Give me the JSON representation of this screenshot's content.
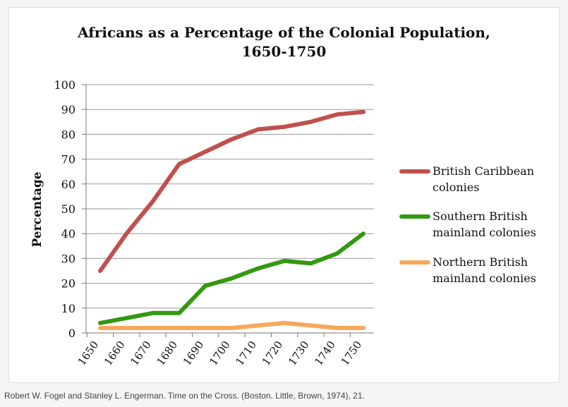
{
  "chart_data": {
    "type": "line",
    "title_lines": [
      "Africans as a Percentage of the Colonial Population,",
      "1650-1750"
    ],
    "ylabel": "Percentage",
    "xlabel": "",
    "ylim": [
      0,
      100
    ],
    "y_ticks": [
      "0",
      "10",
      "20",
      "30",
      "40",
      "50",
      "60",
      "70",
      "80",
      "90",
      "100"
    ],
    "categories": [
      "1650",
      "1660",
      "1670",
      "1680",
      "1690",
      "1700",
      "1710",
      "1720",
      "1730",
      "1740",
      "1750"
    ],
    "grid": "horizontal",
    "legend_position": "right",
    "series": [
      {
        "name_lines": [
          "British Caribbean",
          "colonies"
        ],
        "color": "#c0504d",
        "values": [
          25,
          40,
          53,
          68,
          73,
          78,
          82,
          83,
          85,
          88,
          89
        ]
      },
      {
        "name_lines": [
          "Southern British",
          "mainland colonies"
        ],
        "color": "#339910",
        "values": [
          4,
          6,
          8,
          8,
          19,
          22,
          26,
          29,
          28,
          32,
          40
        ]
      },
      {
        "name_lines": [
          "Northern British",
          "mainland colonies"
        ],
        "color": "#f7a85a",
        "values": [
          2,
          2,
          2,
          2,
          2,
          2,
          3,
          4,
          3,
          2,
          2
        ]
      }
    ]
  },
  "source": "Robert W. Fogel and Stanley L. Engerman. Time on the Cross. (Boston. Little, Brown, 1974), 21."
}
